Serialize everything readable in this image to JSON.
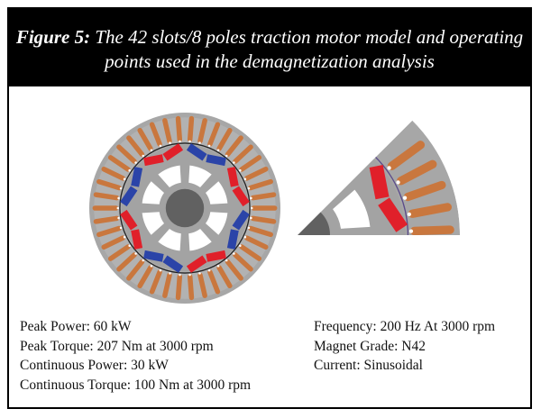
{
  "figure": {
    "label": "Figure 5:",
    "caption": "The 42 slots/8 poles traction motor model and operating points used in the demagnetization analysis"
  },
  "motor": {
    "slots": 42,
    "poles": 8,
    "colors": {
      "stator": "#a7a7a7",
      "rotor": "#a3a3a3",
      "shaft": "#616161",
      "copper": "#c9773e",
      "magnet_n": "#e0202a",
      "magnet_s": "#2b44a8",
      "airgap": "#5a4a8a"
    }
  },
  "specs": {
    "left": [
      "Peak Power: 60 kW",
      "Peak Torque: 207 Nm at 3000 rpm",
      "Continuous Power: 30 kW",
      "Continuous Torque: 100 Nm at 3000 rpm"
    ],
    "right": [
      "Frequency: 200 Hz At 3000 rpm",
      "Magnet Grade: N42",
      "Current: Sinusoidal"
    ]
  }
}
